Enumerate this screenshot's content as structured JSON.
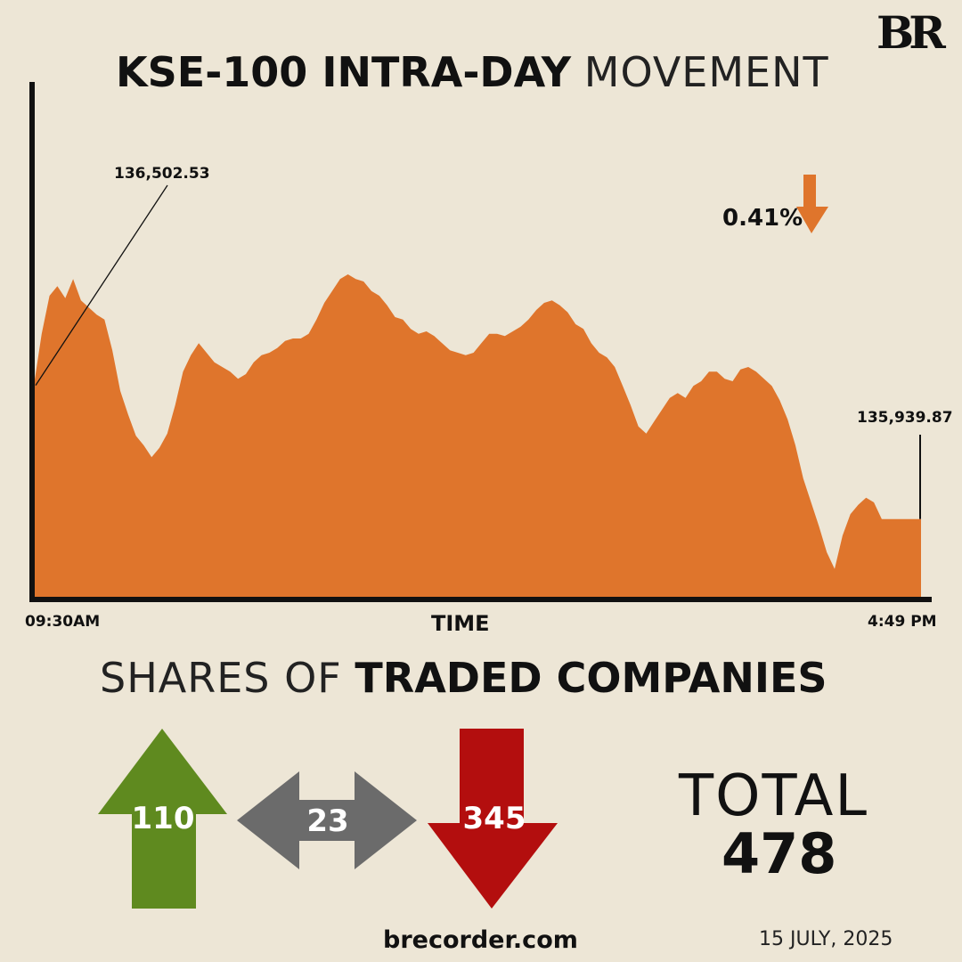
{
  "header": {
    "logo": "BR",
    "title_bold": "KSE-100 INTRA-DAY",
    "title_light": "MOVEMENT"
  },
  "chart_data": {
    "type": "area",
    "title": "KSE-100 INTRA-DAY MOVEMENT",
    "xlabel": "TIME",
    "ylabel": "",
    "x_start_label": "09:30AM",
    "x_end_label": "4:49 PM",
    "open_label": "136,502.53",
    "close_label": "135,939.87",
    "change_label": "0.41%",
    "change_direction": "down",
    "color": "#df752c",
    "grid": false,
    "values": [
      136502.53,
      136720,
      136880,
      136920,
      136870,
      136950,
      136860,
      136830,
      136800,
      136780,
      136650,
      136480,
      136380,
      136290,
      136250,
      136200,
      136240,
      136300,
      136420,
      136560,
      136630,
      136680,
      136640,
      136600,
      136580,
      136560,
      136530,
      136550,
      136600,
      136630,
      136640,
      136660,
      136690,
      136700,
      136700,
      136720,
      136780,
      136850,
      136900,
      136950,
      136970,
      136950,
      136940,
      136900,
      136880,
      136840,
      136790,
      136780,
      136740,
      136720,
      136730,
      136710,
      136680,
      136650,
      136640,
      136630,
      136640,
      136680,
      136720,
      136720,
      136710,
      136730,
      136750,
      136780,
      136820,
      136850,
      136860,
      136840,
      136810,
      136760,
      136740,
      136680,
      136640,
      136620,
      136580,
      136500,
      136420,
      136330,
      136300,
      136350,
      136400,
      136450,
      136470,
      136450,
      136500,
      136520,
      136560,
      136560,
      136530,
      136520,
      136570,
      136580,
      136560,
      136530,
      136500,
      136440,
      136360,
      136250,
      136110,
      136010,
      135910,
      135800,
      135730,
      135870,
      135960,
      136000,
      136030,
      136010,
      135939.87,
      135939.87,
      135939.87,
      135939.87,
      135939.87,
      135939.87
    ]
  },
  "shares": {
    "title_light": "SHARES OF",
    "title_bold": "TRADED COMPANIES",
    "advancers": "110",
    "unchanged": "23",
    "decliners": "345",
    "total_label": "TOTAL",
    "total_value": "478",
    "colors": {
      "up": "#5f8a1f",
      "flat": "#6b6b6b",
      "down": "#b30e0e"
    }
  },
  "footer": {
    "site": "brecorder.com",
    "date": "15 JULY, 2025"
  }
}
